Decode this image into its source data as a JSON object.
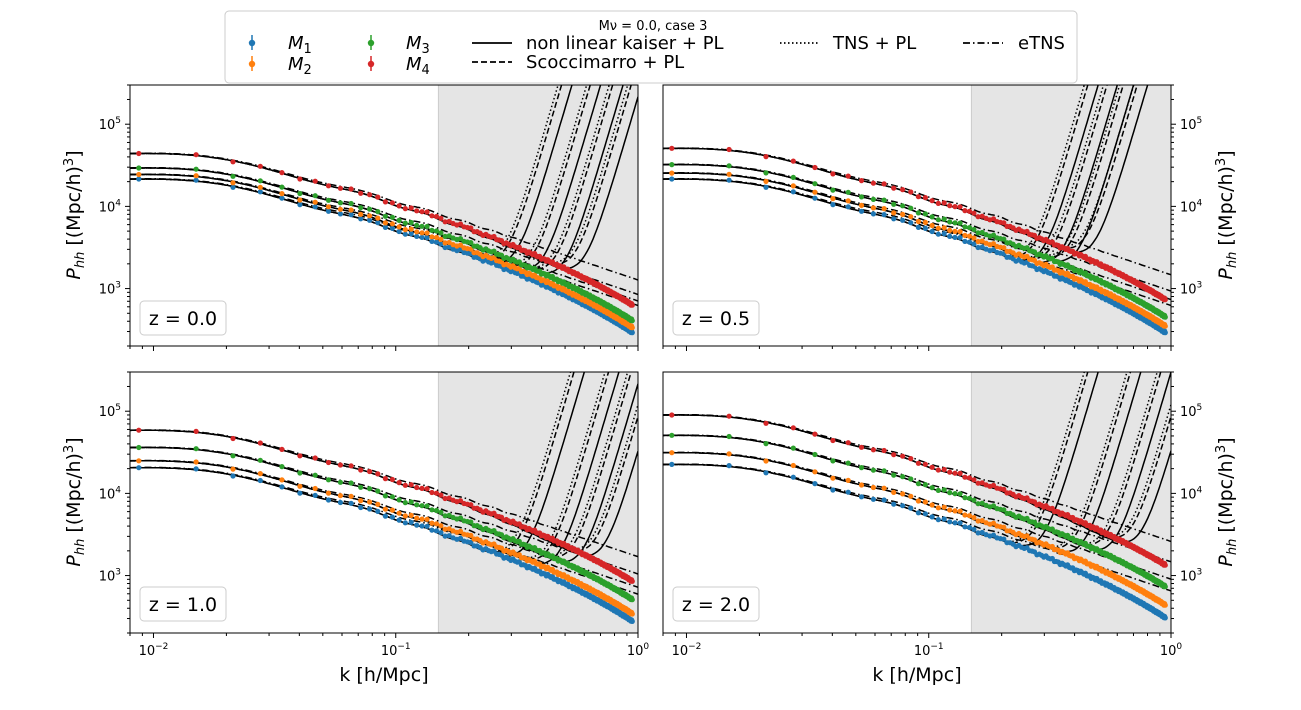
{
  "chart_data": {
    "type": "line",
    "title": "Mν = 0.0, case 3",
    "xlabel": "k [h/Mpc]",
    "ylabel": "P_hh [(Mpc/h)^3]",
    "xscale": "log",
    "yscale": "log",
    "xlim": [
      0.008,
      1.0
    ],
    "ylim": [
      200,
      300000
    ],
    "shaded_region": [
      0.15,
      1.0
    ],
    "x_ticks": [
      {
        "value": 0.01,
        "base": "10",
        "exp": "−2"
      },
      {
        "value": 0.1,
        "base": "10",
        "exp": "−1"
      },
      {
        "value": 1.0,
        "base": "10",
        "exp": "0"
      }
    ],
    "y_ticks": [
      {
        "value": 1000,
        "base": "10",
        "exp": "3"
      },
      {
        "value": 10000,
        "base": "10",
        "exp": "4"
      },
      {
        "value": 100000,
        "base": "10",
        "exp": "5"
      }
    ],
    "legend": {
      "series": [
        {
          "name": "M",
          "sub": "1",
          "color": "#1f77b4"
        },
        {
          "name": "M",
          "sub": "2",
          "color": "#ff7f0e"
        },
        {
          "name": "M",
          "sub": "3",
          "color": "#2ca02c"
        },
        {
          "name": "M",
          "sub": "4",
          "color": "#d62728"
        }
      ],
      "models": [
        {
          "label": "non linear kaiser + PL",
          "dash": "solid"
        },
        {
          "label": "Scoccimarro + PL",
          "dash": "dashed"
        },
        {
          "label": "TNS + PL",
          "dash": "dotted"
        },
        {
          "label": "eTNS",
          "dash": "dashdot"
        }
      ]
    },
    "panels": [
      {
        "label": "z = 0.0",
        "amplitudes": [
          22000,
          25000,
          30000,
          45000
        ],
        "rise_k": [
          0.32,
          0.42,
          0.52,
          0.62
        ]
      },
      {
        "label": "z = 0.5",
        "amplitudes": [
          22000,
          26000,
          33000,
          52000
        ],
        "rise_k": [
          0.3,
          0.36,
          0.42,
          0.48
        ]
      },
      {
        "label": "z = 1.0",
        "amplitudes": [
          21000,
          25500,
          37000,
          60000
        ],
        "rise_k": [
          0.36,
          0.5,
          0.62,
          0.75
        ]
      },
      {
        "label": "z = 2.0",
        "amplitudes": [
          23000,
          32000,
          52000,
          92000
        ],
        "rise_k": [
          0.3,
          0.45,
          0.6,
          0.75
        ]
      }
    ]
  }
}
